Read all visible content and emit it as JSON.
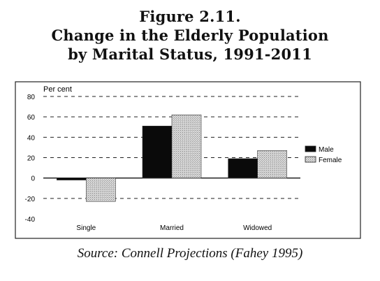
{
  "figure": {
    "title_line1": "Figure 2.11.",
    "title_line2": "Change in the Elderly Population",
    "title_line3": "by Marital Status, 1991-2011",
    "source": "Source: Connell Projections (Fahey 1995)"
  },
  "chart_data": {
    "type": "bar",
    "title": "Change in the Elderly Population by Marital Status, 1991-2011",
    "ylabel": "Per cent",
    "xlabel": "",
    "categories": [
      "Single",
      "Married",
      "Widowed"
    ],
    "series": [
      {
        "name": "Male",
        "values": [
          -2,
          51,
          19
        ],
        "color": "#0a0a0a"
      },
      {
        "name": "Female",
        "values": [
          -23,
          62,
          27
        ],
        "color": "#cfcfcf"
      }
    ],
    "ylim": [
      -40,
      80
    ],
    "yticks": [
      -40,
      -20,
      0,
      20,
      40,
      60,
      80
    ],
    "grid": "dashed horizontal",
    "legend": "right"
  }
}
